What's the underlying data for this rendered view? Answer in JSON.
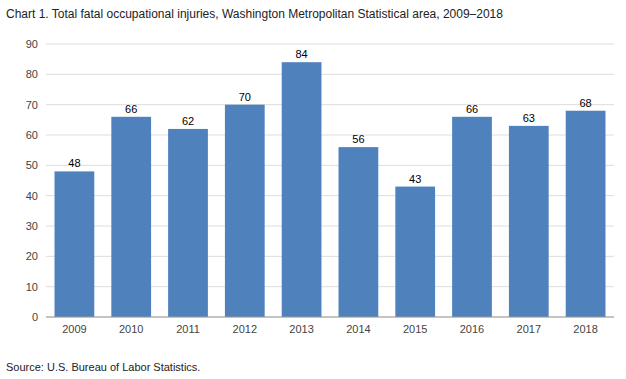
{
  "chart_data": {
    "type": "bar",
    "title": "Chart 1. Total fatal occupational injuries, Washington Metropolitan Statistical area, 2009–2018",
    "source": "Source: U.S. Bureau of Labor Statistics.",
    "categories": [
      "2009",
      "2010",
      "2011",
      "2012",
      "2013",
      "2014",
      "2015",
      "2016",
      "2017",
      "2018"
    ],
    "values": [
      48,
      66,
      62,
      70,
      84,
      56,
      43,
      66,
      63,
      68
    ],
    "color": "#4f81bd",
    "ylim": [
      0,
      90
    ],
    "yticks": [
      0,
      10,
      20,
      30,
      40,
      50,
      60,
      70,
      80,
      90
    ],
    "grid": true,
    "data_labels": true
  }
}
